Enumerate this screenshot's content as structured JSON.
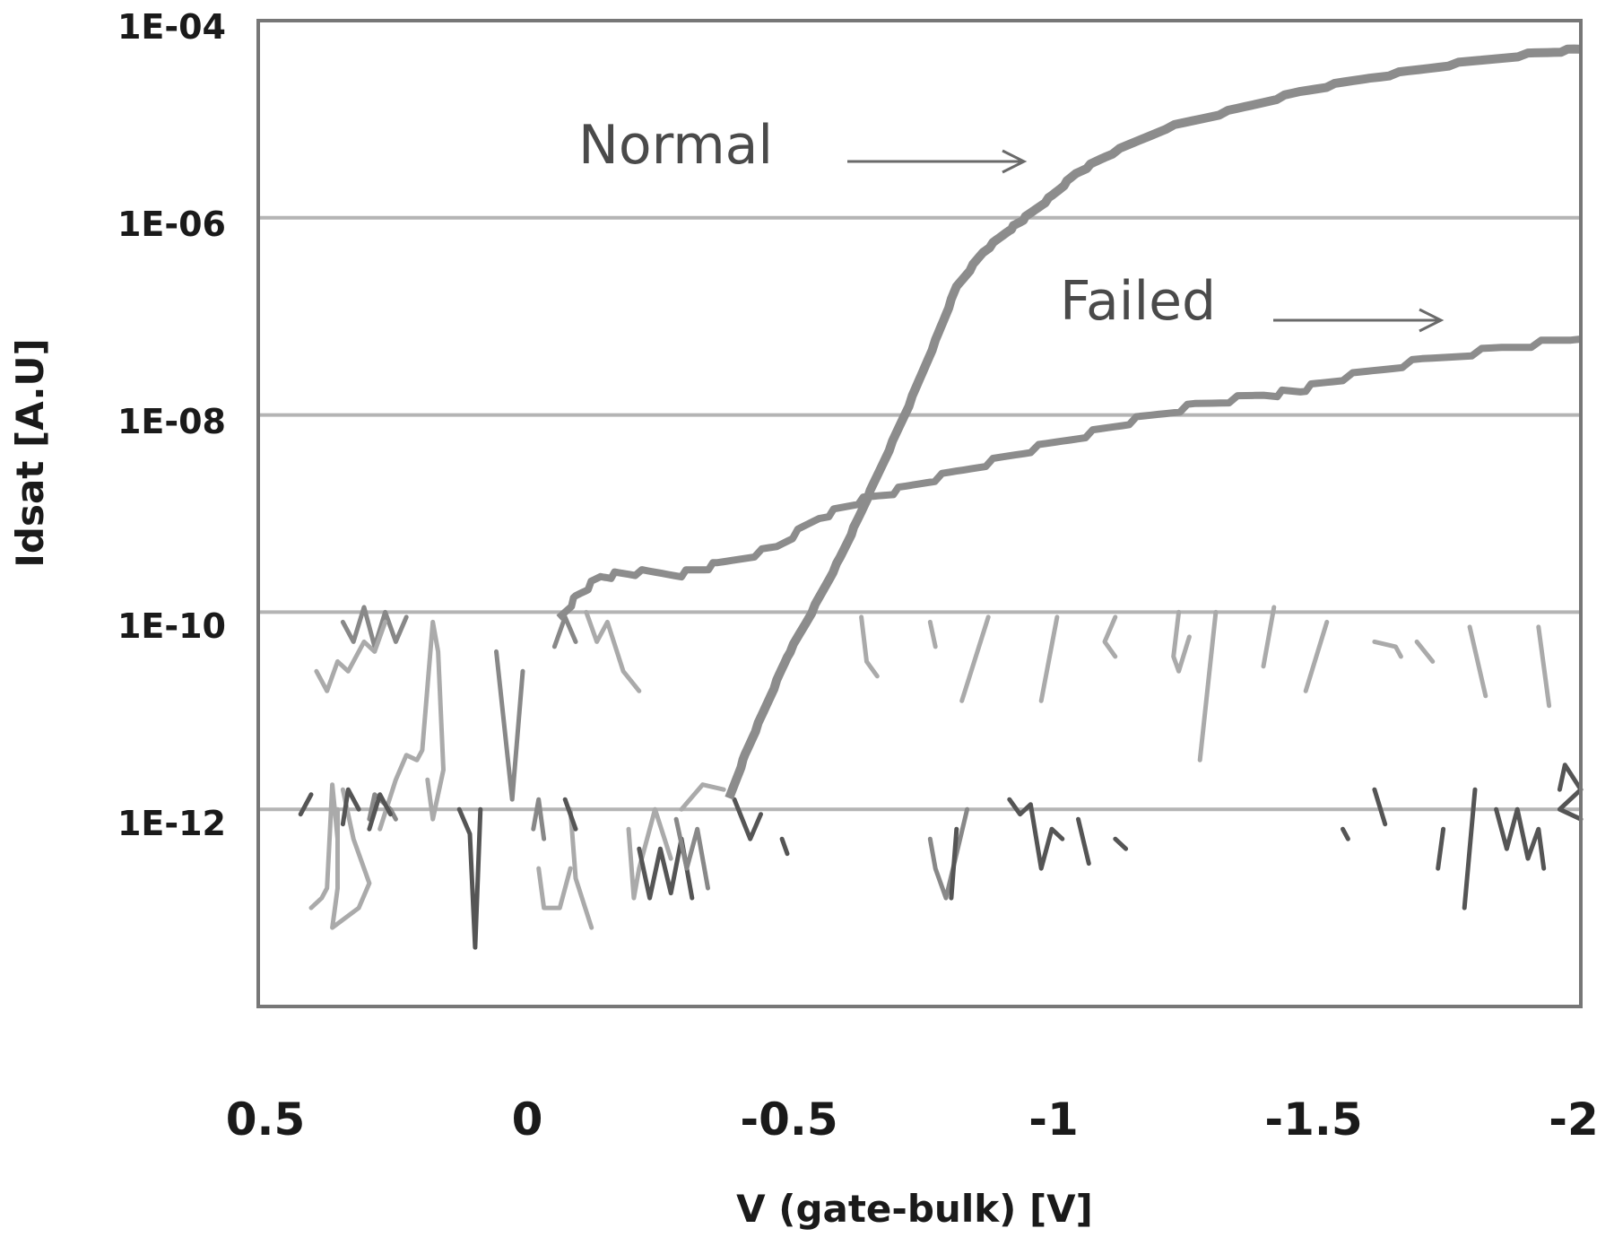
{
  "chart_data": {
    "type": "line",
    "title": "",
    "xlabel": "V (gate-bulk) [V]",
    "ylabel": "Idsat [A.U]",
    "xlim": [
      0.5,
      -2
    ],
    "ylim_log10": [
      -14,
      -4
    ],
    "y_scale": "log",
    "grid": true,
    "legend": "none (inline annotations with arrows)",
    "x_ticks": [
      "0.5",
      "0",
      "-0.5",
      "-1",
      "-1.5",
      "-2"
    ],
    "x_tick_values": [
      0.5,
      0,
      -0.5,
      -1,
      -1.5,
      -2
    ],
    "y_ticks": [
      "1E-04",
      "1E-06",
      "1E-08",
      "1E-10",
      "1E-12"
    ],
    "y_tick_values_log10": [
      -4,
      -6,
      -8,
      -10,
      -12
    ],
    "annotations": [
      {
        "text": "Normal",
        "points_to": "Normal curve near V=-0.95, Idsat=1E-06"
      },
      {
        "text": "Failed",
        "points_to": "Failed curve near V=-1.8, Idsat~6E-08"
      }
    ],
    "series": [
      {
        "name": "Normal",
        "color": "#8c8c8c",
        "x": [
          -0.39,
          -0.42,
          -0.46,
          -0.5,
          -0.546,
          -0.6,
          -0.634,
          -0.68,
          -0.73,
          -0.78,
          -0.82,
          -0.87,
          -0.92,
          -0.95,
          -1.0,
          -1.046,
          -1.1,
          -1.215,
          -1.35,
          -1.47,
          -1.6,
          -1.75,
          -1.9,
          -2.0
        ],
        "log10_y": [
          -11.9,
          -11.45,
          -10.95,
          -10.45,
          -10.0,
          -9.45,
          -9.05,
          -8.5,
          -7.9,
          -7.25,
          -6.7,
          -6.35,
          -6.12,
          -6.0,
          -5.78,
          -5.55,
          -5.38,
          -5.09,
          -4.9,
          -4.72,
          -4.58,
          -4.45,
          -4.34,
          -4.29
        ]
      },
      {
        "name": "Failed",
        "color": "#8c8c8c",
        "x": [
          -0.068,
          -0.1,
          -0.147,
          -0.2,
          -0.3,
          -0.368,
          -0.48,
          -0.56,
          -0.634,
          -0.71,
          -0.82,
          -0.93,
          -1.05,
          -1.16,
          -1.27,
          -1.4,
          -1.47,
          -1.55,
          -1.7,
          -1.85,
          -2.0
        ],
        "log10_y": [
          -10.09,
          -9.85,
          -9.64,
          -9.6,
          -9.61,
          -9.52,
          -9.34,
          -9.04,
          -8.88,
          -8.76,
          -8.58,
          -8.4,
          -8.22,
          -8.05,
          -7.9,
          -7.8,
          -7.75,
          -7.62,
          -7.45,
          -7.32,
          -7.23
        ]
      },
      {
        "name": "Noise floor traces (multiple devices)",
        "description": "Noisy fragments between ~1E-13 and 1E-10 across the full voltage range, in three gray shades",
        "range_log10": [
          -13.5,
          -10
        ]
      }
    ]
  },
  "noise_fragments": [
    {
      "c": "#555555",
      "p": [
        [
          -0.42,
          -12.05
        ],
        [
          -0.4,
          -11.85
        ]
      ]
    },
    {
      "c": "#aaaaaa",
      "p": [
        [
          -0.35,
          -12.3
        ],
        [
          -0.36,
          -11.75
        ],
        [
          -0.37,
          -12.8
        ],
        [
          -0.38,
          -12.9
        ],
        [
          -0.4,
          -13.0
        ]
      ]
    },
    {
      "c": "#aaaaaa",
      "p": [
        [
          -0.34,
          -11.8
        ],
        [
          -0.32,
          -12.3
        ],
        [
          -0.3,
          -12.6
        ],
        [
          -0.29,
          -12.75
        ],
        [
          -0.31,
          -13.0
        ],
        [
          -0.36,
          -13.2
        ],
        [
          -0.35,
          -12.8
        ],
        [
          -0.35,
          -12.0
        ]
      ]
    },
    {
      "c": "#888888",
      "p": [
        [
          -0.29,
          -12.1
        ],
        [
          -0.28,
          -11.85
        ],
        [
          -0.27,
          -11.9
        ],
        [
          -0.25,
          -12.0
        ],
        [
          -0.24,
          -12.1
        ]
      ]
    },
    {
      "c": "#aaaaaa",
      "p": [
        [
          -0.27,
          -12.2
        ],
        [
          -0.24,
          -11.7
        ],
        [
          -0.22,
          -11.45
        ],
        [
          -0.2,
          -11.5
        ],
        [
          -0.19,
          -11.4
        ],
        [
          -0.17,
          -10.1
        ],
        [
          -0.16,
          -10.4
        ],
        [
          -0.15,
          -11.6
        ],
        [
          -0.17,
          -12.1
        ],
        [
          -0.18,
          -11.7
        ]
      ]
    },
    {
      "c": "#888888",
      "p": [
        [
          -0.22,
          -10.05
        ],
        [
          -0.24,
          -10.3
        ],
        [
          -0.26,
          -10.0
        ],
        [
          -0.28,
          -10.35
        ],
        [
          -0.3,
          -9.95
        ],
        [
          -0.32,
          -10.3
        ],
        [
          -0.34,
          -10.1
        ]
      ]
    },
    {
      "c": "#aaaaaa",
      "p": [
        [
          -0.26,
          -10.1
        ],
        [
          -0.28,
          -10.4
        ],
        [
          -0.3,
          -10.3
        ],
        [
          -0.33,
          -10.6
        ],
        [
          -0.35,
          -10.5
        ],
        [
          -0.37,
          -10.8
        ],
        [
          -0.39,
          -10.6
        ]
      ]
    },
    {
      "c": "#555555",
      "p": [
        [
          -0.25,
          -12.05
        ],
        [
          -0.27,
          -11.85
        ],
        [
          -0.29,
          -12.2
        ]
      ]
    },
    {
      "c": "#555555",
      "p": [
        [
          -0.31,
          -12.0
        ],
        [
          -0.33,
          -11.8
        ],
        [
          -0.34,
          -12.15
        ]
      ]
    },
    {
      "c": "#555555",
      "p": [
        [
          -0.12,
          -12.0
        ],
        [
          -0.1,
          -12.25
        ],
        [
          -0.09,
          -13.4
        ],
        [
          -0.08,
          -12.0
        ]
      ]
    },
    {
      "c": "#888888",
      "p": [
        [
          -0.05,
          -10.4
        ],
        [
          -0.02,
          -11.9
        ],
        [
          0.0,
          -10.6
        ]
      ]
    },
    {
      "c": "#888888",
      "p": [
        [
          0.02,
          -12.2
        ],
        [
          0.03,
          -11.9
        ],
        [
          0.04,
          -12.3
        ]
      ]
    },
    {
      "c": "#aaaaaa",
      "p": [
        [
          0.03,
          -12.6
        ],
        [
          0.04,
          -13.0
        ],
        [
          0.07,
          -13.0
        ],
        [
          0.09,
          -12.6
        ]
      ]
    },
    {
      "c": "#aaaaaa",
      "p": [
        [
          0.09,
          -12.0
        ],
        [
          0.1,
          -12.7
        ],
        [
          0.13,
          -13.2
        ]
      ]
    },
    {
      "c": "#555555",
      "p": [
        [
          0.08,
          -11.9
        ],
        [
          0.1,
          -12.2
        ]
      ]
    },
    {
      "c": "#888888",
      "p": [
        [
          0.06,
          -10.35
        ],
        [
          0.08,
          -10.05
        ],
        [
          0.1,
          -10.3
        ]
      ]
    },
    {
      "c": "#aaaaaa",
      "p": [
        [
          0.12,
          -10.0
        ],
        [
          0.14,
          -10.3
        ],
        [
          0.16,
          -10.1
        ],
        [
          0.19,
          -10.6
        ],
        [
          0.22,
          -10.8
        ]
      ]
    },
    {
      "c": "#aaaaaa",
      "p": [
        [
          0.2,
          -12.2
        ],
        [
          0.21,
          -12.9
        ],
        [
          0.22,
          -12.6
        ],
        [
          0.25,
          -12.0
        ],
        [
          0.28,
          -12.5
        ]
      ]
    },
    {
      "c": "#555555",
      "p": [
        [
          0.22,
          -12.4
        ],
        [
          0.24,
          -12.9
        ],
        [
          0.26,
          -12.4
        ],
        [
          0.28,
          -12.85
        ],
        [
          0.3,
          -12.3
        ],
        [
          0.32,
          -12.9
        ]
      ]
    },
    {
      "c": "#888888",
      "p": [
        [
          0.29,
          -12.1
        ],
        [
          0.31,
          -12.6
        ],
        [
          0.33,
          -12.2
        ],
        [
          0.35,
          -12.8
        ]
      ]
    },
    {
      "c": "#aaaaaa",
      "p": [
        [
          0.3,
          -12.0
        ],
        [
          0.34,
          -11.75
        ],
        [
          0.38,
          -11.8
        ]
      ]
    },
    {
      "c": "#555555",
      "p": [
        [
          0.4,
          -11.9
        ],
        [
          0.43,
          -12.3
        ],
        [
          0.45,
          -12.05
        ]
      ]
    },
    {
      "c": "#555555",
      "p": [
        [
          0.49,
          -12.3
        ],
        [
          0.5,
          -12.45
        ]
      ]
    },
    {
      "c": "#aaaaaa",
      "p": [
        [
          0.64,
          -10.05
        ],
        [
          0.65,
          -10.5
        ],
        [
          0.67,
          -10.65
        ]
      ]
    },
    {
      "c": "#aaaaaa",
      "p": [
        [
          0.77,
          -10.1
        ],
        [
          0.78,
          -10.35
        ]
      ]
    },
    {
      "c": "#aaaaaa",
      "p": [
        [
          0.88,
          -10.05
        ],
        [
          0.83,
          -10.9
        ]
      ]
    },
    {
      "c": "#888888",
      "p": [
        [
          0.77,
          -12.3
        ],
        [
          0.78,
          -12.6
        ],
        [
          0.8,
          -12.9
        ],
        [
          0.84,
          -12.0
        ]
      ]
    },
    {
      "c": "#555555",
      "p": [
        [
          0.82,
          -12.2
        ],
        [
          0.81,
          -12.9
        ]
      ]
    },
    {
      "c": "#555555",
      "p": [
        [
          0.92,
          -11.9
        ],
        [
          0.94,
          -12.05
        ],
        [
          0.96,
          -11.95
        ],
        [
          0.98,
          -12.6
        ],
        [
          1.0,
          -12.2
        ],
        [
          1.02,
          -12.3
        ]
      ]
    },
    {
      "c": "#555555",
      "p": [
        [
          1.05,
          -12.1
        ],
        [
          1.07,
          -12.55
        ]
      ]
    },
    {
      "c": "#555555",
      "p": [
        [
          1.12,
          -12.3
        ],
        [
          1.14,
          -12.4
        ]
      ]
    },
    {
      "c": "#aaaaaa",
      "p": [
        [
          1.01,
          -10.05
        ],
        [
          0.98,
          -10.9
        ]
      ]
    },
    {
      "c": "#aaaaaa",
      "p": [
        [
          1.12,
          -10.05
        ],
        [
          1.1,
          -10.3
        ],
        [
          1.12,
          -10.45
        ]
      ]
    },
    {
      "c": "#aaaaaa",
      "p": [
        [
          1.24,
          -10.0
        ],
        [
          1.23,
          -10.45
        ],
        [
          1.24,
          -10.6
        ],
        [
          1.26,
          -10.25
        ]
      ]
    },
    {
      "c": "#aaaaaa",
      "p": [
        [
          1.31,
          -10.0
        ],
        [
          1.28,
          -11.5
        ]
      ]
    },
    {
      "c": "#aaaaaa",
      "p": [
        [
          1.42,
          -9.95
        ],
        [
          1.4,
          -10.55
        ]
      ]
    },
    {
      "c": "#aaaaaa",
      "p": [
        [
          1.52,
          -10.1
        ],
        [
          1.48,
          -10.8
        ]
      ]
    },
    {
      "c": "#aaaaaa",
      "p": [
        [
          1.61,
          -10.3
        ],
        [
          1.65,
          -10.35
        ],
        [
          1.66,
          -10.45
        ]
      ]
    },
    {
      "c": "#aaaaaa",
      "p": [
        [
          1.69,
          -10.3
        ],
        [
          1.72,
          -10.5
        ]
      ]
    },
    {
      "c": "#aaaaaa",
      "p": [
        [
          1.79,
          -10.15
        ],
        [
          1.82,
          -10.85
        ]
      ]
    },
    {
      "c": "#aaaaaa",
      "p": [
        [
          1.92,
          -10.15
        ],
        [
          1.94,
          -10.95
        ]
      ]
    },
    {
      "c": "#555555",
      "p": [
        [
          1.55,
          -12.2
        ],
        [
          1.56,
          -12.3
        ]
      ]
    },
    {
      "c": "#555555",
      "p": [
        [
          1.63,
          -12.15
        ],
        [
          1.61,
          -11.8
        ]
      ]
    },
    {
      "c": "#555555",
      "p": [
        [
          1.74,
          -12.2
        ],
        [
          1.73,
          -12.6
        ]
      ]
    },
    {
      "c": "#555555",
      "p": [
        [
          1.8,
          -11.8
        ],
        [
          1.78,
          -13.0
        ]
      ]
    },
    {
      "c": "#555555",
      "p": [
        [
          1.84,
          -12.0
        ],
        [
          1.86,
          -12.4
        ],
        [
          1.88,
          -12.0
        ],
        [
          1.9,
          -12.5
        ],
        [
          1.92,
          -12.2
        ],
        [
          1.93,
          -12.6
        ]
      ]
    },
    {
      "c": "#555555",
      "p": [
        [
          1.96,
          -11.8
        ],
        [
          1.97,
          -11.55
        ],
        [
          2.0,
          -11.8
        ],
        [
          1.96,
          -12.0
        ],
        [
          2.0,
          -12.1
        ]
      ]
    }
  ],
  "annotation_labels": {
    "normal": "Normal",
    "failed": "Failed"
  },
  "axes": {
    "x_title": "V (gate-bulk) [V]",
    "y_title": "Idsat [A.U]"
  }
}
